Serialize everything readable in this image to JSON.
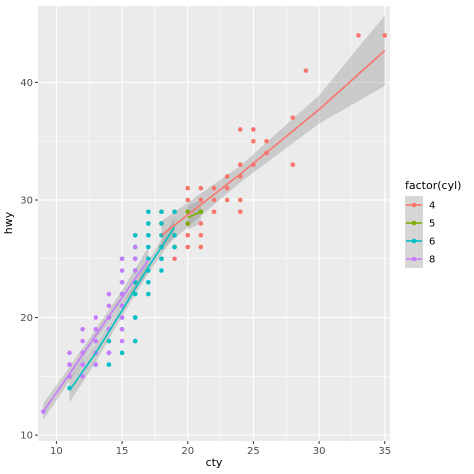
{
  "chart_data": {
    "type": "scatter",
    "xlabel": "cty",
    "ylabel": "hwy",
    "xlim": [
      8.6,
      35.4
    ],
    "ylim": [
      9.5,
      46.5
    ],
    "x_ticks": [
      10,
      15,
      20,
      25,
      30,
      35
    ],
    "y_ticks": [
      10,
      20,
      30,
      40
    ],
    "grid": true,
    "background": "#ebebeb",
    "legend": {
      "title": "factor(cyl)",
      "position": "right"
    },
    "series": [
      {
        "name": "4",
        "color": "#f8766d",
        "points": [
          [
            18,
            29
          ],
          [
            21,
            29
          ],
          [
            20,
            31
          ],
          [
            21,
            30
          ],
          [
            18,
            26
          ],
          [
            18,
            25
          ],
          [
            19,
            27
          ],
          [
            21,
            28
          ],
          [
            24,
            29
          ],
          [
            25,
            35
          ],
          [
            28,
            37
          ],
          [
            21,
            31
          ],
          [
            22,
            31
          ],
          [
            20,
            30
          ],
          [
            22,
            29
          ],
          [
            24,
            33
          ],
          [
            26,
            35
          ],
          [
            24,
            30
          ],
          [
            25,
            33
          ],
          [
            24,
            32
          ],
          [
            23,
            32
          ],
          [
            28,
            33
          ],
          [
            33,
            44
          ],
          [
            35,
            44
          ],
          [
            29,
            41
          ],
          [
            21,
            30
          ],
          [
            20,
            28
          ],
          [
            19,
            26
          ],
          [
            23,
            30
          ],
          [
            21,
            27
          ],
          [
            22,
            30
          ],
          [
            24,
            36
          ],
          [
            25,
            36
          ],
          [
            26,
            34
          ],
          [
            18,
            28
          ],
          [
            19,
            29
          ],
          [
            20,
            27
          ],
          [
            21,
            26
          ],
          [
            22,
            29
          ],
          [
            23,
            31
          ],
          [
            19,
            25
          ],
          [
            20,
            26
          ]
        ],
        "fit": [
          [
            18,
            27.0
          ],
          [
            24,
            32.2
          ],
          [
            30,
            37.7
          ],
          [
            35,
            42.7
          ]
        ],
        "band": [
          [
            18,
            25.8,
            28.2
          ],
          [
            24,
            31.5,
            32.9
          ],
          [
            30,
            36.5,
            38.9
          ],
          [
            35,
            39.7,
            45.7
          ]
        ]
      },
      {
        "name": "5",
        "color": "#7cae00",
        "points": [
          [
            21,
            29
          ],
          [
            20,
            28
          ],
          [
            21,
            29
          ],
          [
            20,
            29
          ]
        ],
        "fit": [
          [
            20,
            28.5
          ],
          [
            21,
            29.0
          ]
        ],
        "band": [
          [
            20,
            27.5,
            29.5
          ],
          [
            21,
            28.0,
            30.0
          ]
        ]
      },
      {
        "name": "6",
        "color": "#00bfc4",
        "points": [
          [
            11,
            14
          ],
          [
            14,
            19
          ],
          [
            15,
            20
          ],
          [
            16,
            20
          ],
          [
            17,
            22
          ],
          [
            18,
            26
          ],
          [
            16,
            26
          ],
          [
            17,
            27
          ],
          [
            19,
            27
          ],
          [
            15,
            22
          ],
          [
            16,
            22
          ],
          [
            17,
            25
          ],
          [
            14,
            17
          ],
          [
            15,
            17
          ],
          [
            16,
            18
          ],
          [
            13,
            16
          ],
          [
            14,
            16
          ],
          [
            15,
            25
          ],
          [
            16,
            24
          ],
          [
            17,
            26
          ],
          [
            18,
            25
          ],
          [
            19,
            26
          ],
          [
            14,
            20
          ],
          [
            15,
            21
          ],
          [
            16,
            23
          ],
          [
            17,
            24
          ],
          [
            18,
            24
          ],
          [
            16,
            25
          ],
          [
            14,
            18
          ],
          [
            15,
            19
          ],
          [
            17,
            29
          ],
          [
            18,
            29
          ],
          [
            19,
            29
          ],
          [
            16,
            27
          ],
          [
            17,
            28
          ],
          [
            15,
            23
          ],
          [
            18,
            28
          ],
          [
            16,
            20
          ],
          [
            17,
            23
          ],
          [
            18,
            27
          ]
        ],
        "fit": [
          [
            11,
            13.8
          ],
          [
            13,
            17.0
          ],
          [
            15,
            20.6
          ],
          [
            17,
            24.3
          ],
          [
            19,
            27.7
          ]
        ],
        "band": [
          [
            11,
            12.8,
            14.8
          ],
          [
            13,
            16.2,
            17.8
          ],
          [
            15,
            20.1,
            21.1
          ],
          [
            17,
            23.8,
            24.8
          ],
          [
            19,
            26.9,
            28.5
          ]
        ]
      },
      {
        "name": "8",
        "color": "#c77cff",
        "points": [
          [
            9,
            12
          ],
          [
            11,
            15
          ],
          [
            11,
            16
          ],
          [
            11,
            17
          ],
          [
            12,
            16
          ],
          [
            12,
            17
          ],
          [
            13,
            17
          ],
          [
            13,
            18
          ],
          [
            14,
            19
          ],
          [
            14,
            20
          ],
          [
            15,
            20
          ],
          [
            15,
            21
          ],
          [
            15,
            22
          ],
          [
            15,
            23
          ],
          [
            15,
            24
          ],
          [
            15,
            25
          ],
          [
            16,
            24
          ],
          [
            16,
            25
          ],
          [
            16,
            26
          ],
          [
            12,
            18
          ],
          [
            13,
            19
          ],
          [
            14,
            21
          ],
          [
            11,
            15
          ],
          [
            12,
            15
          ],
          [
            13,
            16
          ],
          [
            14,
            17
          ],
          [
            15,
            18
          ],
          [
            11,
            16
          ],
          [
            12,
            16
          ],
          [
            13,
            17
          ],
          [
            14,
            17
          ],
          [
            15,
            19
          ],
          [
            13,
            20
          ],
          [
            14,
            22
          ],
          [
            12,
            19
          ],
          [
            11,
            16
          ]
        ],
        "fit": [
          [
            9,
            12.0
          ],
          [
            11,
            15.2
          ],
          [
            13,
            18.5
          ],
          [
            15,
            21.7
          ],
          [
            17,
            24.9
          ]
        ],
        "band": [
          [
            9,
            11.3,
            12.7
          ],
          [
            11,
            14.6,
            15.8
          ],
          [
            13,
            18.0,
            19.0
          ],
          [
            15,
            21.1,
            22.3
          ],
          [
            17,
            23.8,
            26.0
          ]
        ]
      }
    ]
  }
}
